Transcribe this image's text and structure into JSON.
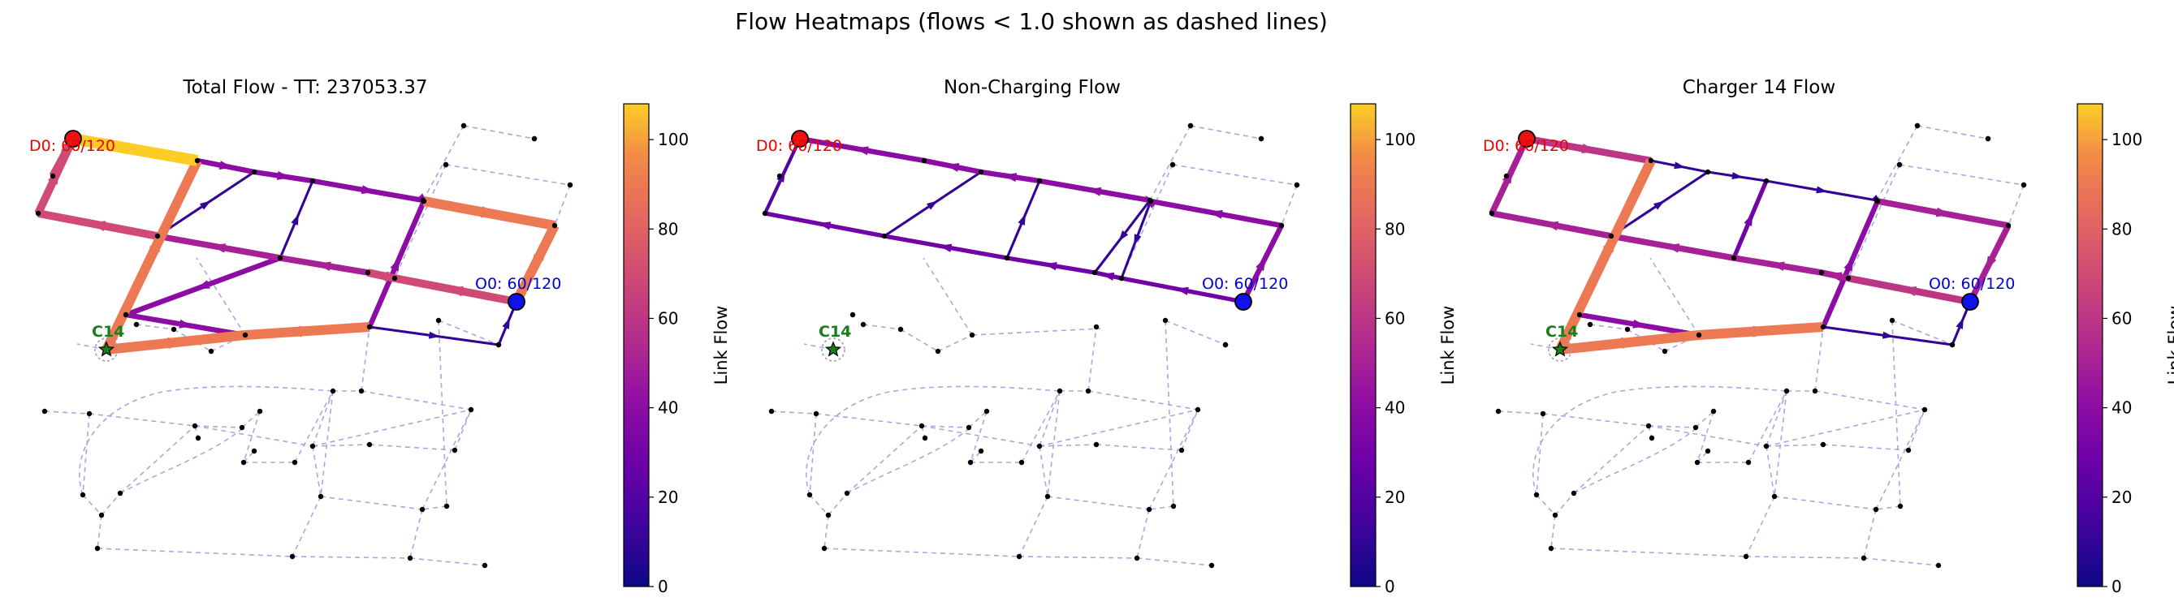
{
  "suptitle": "Flow Heatmaps (flows < 1.0 shown as dashed lines)",
  "colorbar": {
    "label": "Link Flow",
    "ticks": [
      "0",
      "20",
      "40",
      "60",
      "80",
      "100"
    ],
    "min": 0,
    "max": 108,
    "colormap": "plasma"
  },
  "chart_data": [
    {
      "type": "network",
      "title": "Total Flow - TT: 237053.37",
      "origin_label": "O0: 60/120",
      "destination_label": "D0: 60/120",
      "charger_label": "C14",
      "dashed_threshold": 1.0,
      "links": [
        {
          "from": "n_d0",
          "to": "n_a2",
          "flow": 108
        },
        {
          "from": "n_a2",
          "to": "n_top3",
          "flow": 40
        },
        {
          "from": "n_top3",
          "to": "n_top4",
          "flow": 40
        },
        {
          "from": "n_top4",
          "to": "n_top5",
          "flow": 40
        },
        {
          "from": "n_top5",
          "to": "n_top6",
          "flow": 40
        },
        {
          "from": "n_top6",
          "to": "n_ne",
          "flow": 90
        },
        {
          "from": "n_ne",
          "to": "n_o0",
          "flow": 90
        },
        {
          "from": "n_o0",
          "to": "n_m4",
          "flow": 70
        },
        {
          "from": "n_m4",
          "to": "n_m3",
          "flow": 70
        },
        {
          "from": "n_m3",
          "to": "n_m2",
          "flow": 50
        },
        {
          "from": "n_m2",
          "to": "n_m1",
          "flow": 50
        },
        {
          "from": "n_m1",
          "to": "n_w",
          "flow": 70
        },
        {
          "from": "n_w",
          "to": "n_d0",
          "flow": 70
        },
        {
          "from": "n_a2",
          "to": "n_c14",
          "flow": 90
        },
        {
          "from": "n_c14",
          "to": "n_s2",
          "flow": 90
        },
        {
          "from": "n_s2",
          "to": "n_s3",
          "flow": 90
        },
        {
          "from": "n_s3",
          "to": "n_top6",
          "flow": 40
        },
        {
          "from": "n_s3",
          "to": "n_e1",
          "flow": 10
        },
        {
          "from": "n_e1",
          "to": "n_o0",
          "flow": 10
        },
        {
          "from": "n_c14",
          "to": "n_c2",
          "flow": 40
        },
        {
          "from": "n_c2",
          "to": "n_s2",
          "flow": 40
        },
        {
          "from": "n_m1",
          "to": "n_top3",
          "flow": 10
        },
        {
          "from": "n_m2",
          "to": "n_top4",
          "flow": 10
        },
        {
          "from": "n_m2",
          "to": "n_c2",
          "flow": 40
        },
        {
          "from": "n_d0",
          "to": "n_w2",
          "flow": 70
        }
      ]
    },
    {
      "type": "network",
      "title": "Non-Charging Flow",
      "origin_label": "O0: 60/120",
      "destination_label": "D0: 60/120",
      "charger_label": "C14",
      "dashed_threshold": 1.0,
      "links": [
        {
          "from": "n_o0",
          "to": "n_ne",
          "flow": 40
        },
        {
          "from": "n_ne",
          "to": "n_top6",
          "flow": 40
        },
        {
          "from": "n_top6",
          "to": "n_top5",
          "flow": 40
        },
        {
          "from": "n_top5",
          "to": "n_top4",
          "flow": 40
        },
        {
          "from": "n_top4",
          "to": "n_top3",
          "flow": 40
        },
        {
          "from": "n_top3",
          "to": "n_a2",
          "flow": 40
        },
        {
          "from": "n_a2",
          "to": "n_d0",
          "flow": 40
        },
        {
          "from": "n_o0",
          "to": "n_m4",
          "flow": 30
        },
        {
          "from": "n_m4",
          "to": "n_m3",
          "flow": 30
        },
        {
          "from": "n_m3",
          "to": "n_m2",
          "flow": 30
        },
        {
          "from": "n_m2",
          "to": "n_m1",
          "flow": 30
        },
        {
          "from": "n_m1",
          "to": "n_w",
          "flow": 30
        },
        {
          "from": "n_w",
          "to": "n_d0",
          "flow": 20
        },
        {
          "from": "n_m1",
          "to": "n_top3",
          "flow": 10
        },
        {
          "from": "n_m2",
          "to": "n_top4",
          "flow": 10
        },
        {
          "from": "n_top5",
          "to": "n_m3",
          "flow": 10
        },
        {
          "from": "n_top6",
          "to": "n_m4",
          "flow": 10
        }
      ]
    },
    {
      "type": "network",
      "title": "Charger 14 Flow",
      "origin_label": "O0: 60/120",
      "destination_label": "D0: 60/120",
      "charger_label": "C14",
      "dashed_threshold": 1.0,
      "links": [
        {
          "from": "n_d0",
          "to": "n_a2",
          "flow": 60
        },
        {
          "from": "n_a2",
          "to": "n_top3",
          "flow": 10
        },
        {
          "from": "n_top3",
          "to": "n_top4",
          "flow": 10
        },
        {
          "from": "n_top4",
          "to": "n_top5",
          "flow": 10
        },
        {
          "from": "n_top5",
          "to": "n_top6",
          "flow": 10
        },
        {
          "from": "n_top6",
          "to": "n_ne",
          "flow": 50
        },
        {
          "from": "n_ne",
          "to": "n_o0",
          "flow": 50
        },
        {
          "from": "n_o0",
          "to": "n_m4",
          "flow": 60
        },
        {
          "from": "n_m4",
          "to": "n_m3",
          "flow": 50
        },
        {
          "from": "n_m3",
          "to": "n_m2",
          "flow": 50
        },
        {
          "from": "n_m2",
          "to": "n_m1",
          "flow": 50
        },
        {
          "from": "n_m1",
          "to": "n_w",
          "flow": 50
        },
        {
          "from": "n_w",
          "to": "n_d0",
          "flow": 50
        },
        {
          "from": "n_a2",
          "to": "n_c14",
          "flow": 90
        },
        {
          "from": "n_c14",
          "to": "n_s2",
          "flow": 90
        },
        {
          "from": "n_s2",
          "to": "n_s3",
          "flow": 90
        },
        {
          "from": "n_s3",
          "to": "n_top6",
          "flow": 40
        },
        {
          "from": "n_s3",
          "to": "n_e1",
          "flow": 10
        },
        {
          "from": "n_e1",
          "to": "n_o0",
          "flow": 10
        },
        {
          "from": "n_c14",
          "to": "n_c2",
          "flow": 40
        },
        {
          "from": "n_c2",
          "to": "n_s2",
          "flow": 40
        },
        {
          "from": "n_m1",
          "to": "n_top3",
          "flow": 10
        },
        {
          "from": "n_m2",
          "to": "n_top4",
          "flow": 30
        }
      ]
    }
  ]
}
